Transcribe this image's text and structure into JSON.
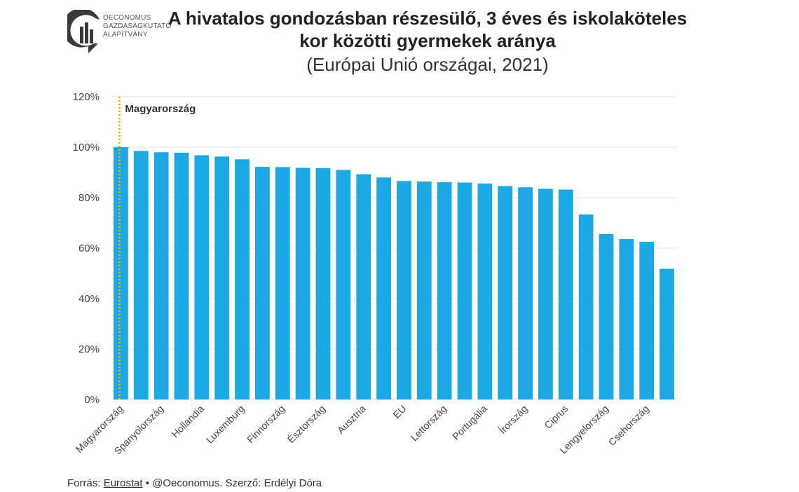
{
  "logo": {
    "lines": [
      "OECONOMUS",
      "GAZDASÁGKUTATÓ",
      "ALAPÍTVÁNY"
    ]
  },
  "title": {
    "line1": "A hivatalos gondozásban részesülő, 3 éves és iskolaköteles",
    "line2": "kor közötti gyermekek aránya",
    "subtitle": "(Európai Unió országai, 2021)"
  },
  "footer": {
    "prefix": "Forrás: ",
    "source": "Eurostat",
    "rest": " • @Oeconomus. Szerző: Erdélyi Dóra"
  },
  "colors": {
    "bar": "#1ba8e4",
    "highlight_line": "#f2b705",
    "grid": "#e4e4e4",
    "axis_text": "#444444"
  },
  "chart_data": {
    "type": "bar",
    "categories": [
      "Magyarország",
      "",
      "Spanyolország",
      "",
      "Hollandia",
      "",
      "Luxemburg",
      "",
      "Finnország",
      "",
      "Észtország",
      "",
      "Ausztria",
      "",
      "EU",
      "",
      "Lettország",
      "",
      "Portugália",
      "",
      "Írország",
      "",
      "Ciprus",
      "",
      "Lengyelország",
      "",
      "Csehország",
      ""
    ],
    "values": [
      100,
      98.5,
      98,
      97.8,
      96.8,
      96.3,
      95.2,
      92.2,
      92.1,
      91.8,
      91.7,
      91,
      89.3,
      88,
      86.6,
      86.4,
      86.1,
      86,
      85.6,
      84.6,
      84.1,
      83.5,
      83.2,
      73.3,
      65.6,
      63.6,
      62.5,
      51.8
    ],
    "yticks": [
      0,
      20,
      40,
      60,
      80,
      100,
      120
    ],
    "ylim": [
      0,
      120
    ],
    "tick_suffix": "%",
    "highlight": {
      "category": "Magyarország",
      "label": "Magyarország"
    },
    "xlabel": "",
    "ylabel": ""
  }
}
